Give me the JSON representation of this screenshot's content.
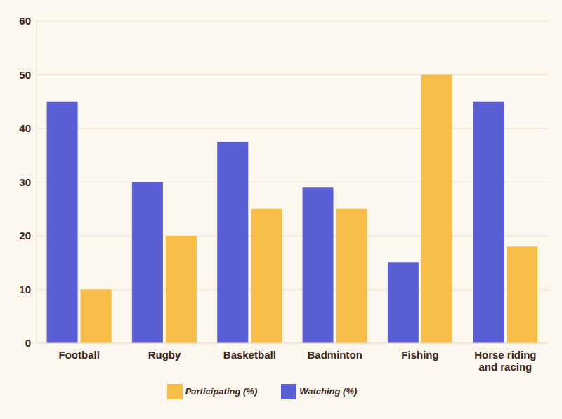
{
  "chart_data": {
    "type": "bar",
    "categories": [
      "Football",
      "Rugby",
      "Basketball",
      "Badminton",
      "Fishing",
      "Horse riding and racing"
    ],
    "series": [
      {
        "name": "Watching (%)",
        "color": "#5b5fd6",
        "values": [
          45,
          30,
          37.5,
          29,
          15,
          45
        ]
      },
      {
        "name": "Participating (%)",
        "color": "#f8bd47",
        "values": [
          10,
          20,
          25,
          25,
          50,
          18
        ]
      }
    ],
    "ylim": [
      0,
      60
    ],
    "yticks": [
      0,
      10,
      20,
      30,
      40,
      50,
      60
    ],
    "grid": true,
    "legend": "bottom"
  }
}
